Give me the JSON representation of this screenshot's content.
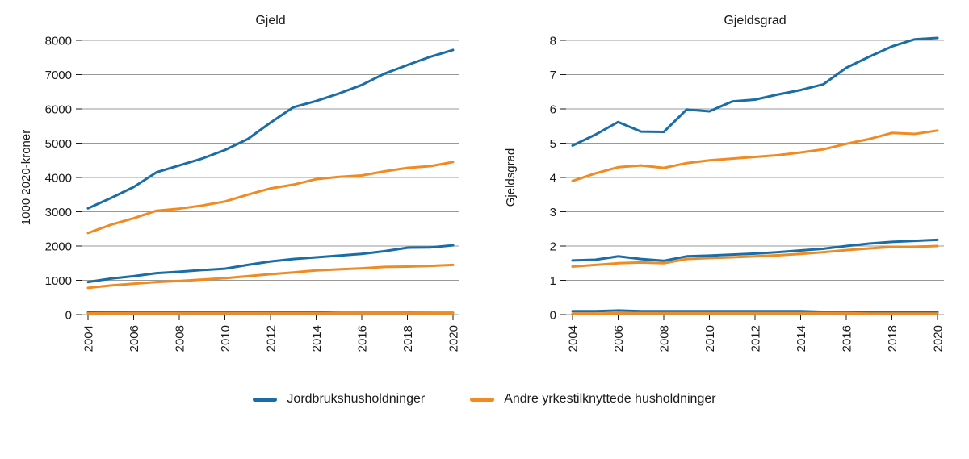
{
  "colors": {
    "blue": "#1b6ea5",
    "orange": "#ef8b22",
    "grid": "#999999",
    "text": "#1a1a1a"
  },
  "legend": [
    {
      "label": "Jordbrukshusholdninger",
      "color": "blue"
    },
    {
      "label": "Andre yrkestilknyttede husholdninger",
      "color": "orange"
    }
  ],
  "chart_data": [
    {
      "type": "line",
      "title": "Gjeld",
      "ylabel": "1000 2020-kroner",
      "x": [
        2004,
        2005,
        2006,
        2007,
        2008,
        2009,
        2010,
        2011,
        2012,
        2013,
        2014,
        2015,
        2016,
        2017,
        2018,
        2019,
        2020
      ],
      "xticks": [
        2004,
        2006,
        2008,
        2010,
        2012,
        2014,
        2016,
        2018,
        2020
      ],
      "ylim": [
        0,
        8000
      ],
      "yticks": [
        0,
        1000,
        2000,
        3000,
        4000,
        5000,
        6000,
        7000,
        8000
      ],
      "grid": "horizontal",
      "series": [
        {
          "id": "jordbruk-upper",
          "group": "Jordbrukshusholdninger",
          "color": "blue",
          "values": [
            3100,
            3400,
            3720,
            4150,
            4350,
            4550,
            4800,
            5120,
            5600,
            6050,
            6230,
            6450,
            6700,
            7030,
            7280,
            7520,
            7720
          ]
        },
        {
          "id": "andre-upper",
          "group": "Andre yrkestilknyttede husholdninger",
          "color": "orange",
          "values": [
            2380,
            2620,
            2810,
            3030,
            3090,
            3180,
            3300,
            3500,
            3680,
            3790,
            3950,
            4020,
            4060,
            4180,
            4280,
            4330,
            4450
          ]
        },
        {
          "id": "jordbruk-mid",
          "group": "Jordbrukshusholdninger",
          "color": "blue",
          "values": [
            950,
            1050,
            1120,
            1210,
            1250,
            1300,
            1340,
            1450,
            1550,
            1620,
            1670,
            1720,
            1770,
            1850,
            1950,
            1960,
            2020
          ]
        },
        {
          "id": "andre-mid",
          "group": "Andre yrkestilknyttede husholdninger",
          "color": "orange",
          "values": [
            780,
            850,
            900,
            950,
            980,
            1020,
            1060,
            1120,
            1180,
            1230,
            1290,
            1320,
            1350,
            1390,
            1400,
            1420,
            1450
          ]
        },
        {
          "id": "jordbruk-low",
          "group": "Jordbrukshusholdninger",
          "color": "blue",
          "values": [
            60,
            60,
            65,
            65,
            65,
            60,
            60,
            60,
            60,
            60,
            60,
            55,
            55,
            55,
            55,
            50,
            50
          ]
        },
        {
          "id": "andre-low",
          "group": "Andre yrkestilknyttede husholdninger",
          "color": "orange",
          "values": [
            35,
            38,
            40,
            40,
            40,
            40,
            40,
            40,
            42,
            42,
            42,
            40,
            40,
            40,
            40,
            38,
            38
          ]
        }
      ]
    },
    {
      "type": "line",
      "title": "Gjeldsgrad",
      "ylabel": "Gjeldsgrad",
      "x": [
        2004,
        2005,
        2006,
        2007,
        2008,
        2009,
        2010,
        2011,
        2012,
        2013,
        2014,
        2015,
        2016,
        2017,
        2018,
        2019,
        2020
      ],
      "xticks": [
        2004,
        2006,
        2008,
        2010,
        2012,
        2014,
        2016,
        2018,
        2020
      ],
      "ylim": [
        0,
        8
      ],
      "yticks": [
        0,
        1,
        2,
        3,
        4,
        5,
        6,
        7,
        8
      ],
      "grid": "horizontal",
      "series": [
        {
          "id": "jordbruk-upper",
          "group": "Jordbrukshusholdninger",
          "color": "blue",
          "values": [
            4.93,
            5.25,
            5.62,
            5.34,
            5.33,
            5.98,
            5.93,
            6.22,
            6.27,
            6.42,
            6.55,
            6.72,
            7.2,
            7.52,
            7.82,
            8.03,
            8.07
          ]
        },
        {
          "id": "andre-upper",
          "group": "Andre yrkestilknyttede husholdninger",
          "color": "orange",
          "values": [
            3.9,
            4.12,
            4.3,
            4.35,
            4.28,
            4.42,
            4.5,
            4.55,
            4.6,
            4.65,
            4.73,
            4.82,
            4.98,
            5.12,
            5.3,
            5.27,
            5.37
          ]
        },
        {
          "id": "jordbruk-mid",
          "group": "Jordbrukshusholdninger",
          "color": "blue",
          "values": [
            1.58,
            1.6,
            1.7,
            1.62,
            1.57,
            1.7,
            1.72,
            1.75,
            1.78,
            1.82,
            1.87,
            1.92,
            2.0,
            2.07,
            2.12,
            2.15,
            2.18
          ]
        },
        {
          "id": "andre-mid",
          "group": "Andre yrkestilknyttede husholdninger",
          "color": "orange",
          "values": [
            1.4,
            1.45,
            1.5,
            1.52,
            1.5,
            1.62,
            1.65,
            1.67,
            1.7,
            1.73,
            1.77,
            1.82,
            1.88,
            1.93,
            1.97,
            1.98,
            2.0
          ]
        },
        {
          "id": "jordbruk-low",
          "group": "Jordbrukshusholdninger",
          "color": "blue",
          "values": [
            0.1,
            0.1,
            0.12,
            0.1,
            0.1,
            0.1,
            0.1,
            0.1,
            0.1,
            0.1,
            0.1,
            0.08,
            0.08,
            0.08,
            0.08,
            0.07,
            0.07
          ]
        },
        {
          "id": "andre-low",
          "group": "Andre yrkestilknyttede husholdninger",
          "color": "orange",
          "values": [
            0.03,
            0.03,
            0.04,
            0.04,
            0.04,
            0.04,
            0.04,
            0.04,
            0.04,
            0.04,
            0.04,
            0.04,
            0.04,
            0.03,
            0.03,
            0.03,
            0.03
          ]
        }
      ]
    }
  ]
}
